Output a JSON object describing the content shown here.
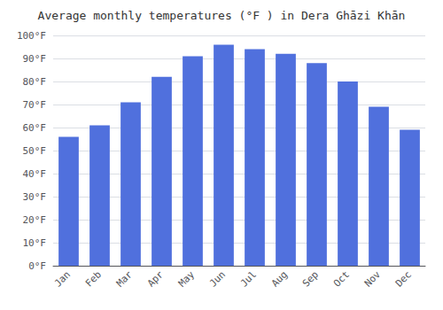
{
  "chart_data": {
    "type": "bar",
    "title": "Average monthly temperatures (°F ) in Dera Ghāzi Khān",
    "categories": [
      "Jan",
      "Feb",
      "Mar",
      "Apr",
      "May",
      "Jun",
      "Jul",
      "Aug",
      "Sep",
      "Oct",
      "Nov",
      "Dec"
    ],
    "values": [
      56,
      61,
      71,
      82,
      91,
      96,
      94,
      92,
      88,
      80,
      69,
      59
    ],
    "ylim": [
      0,
      100
    ],
    "yticks": [
      {
        "value": 0,
        "label": "0°F"
      },
      {
        "value": 10,
        "label": "10°F"
      },
      {
        "value": 20,
        "label": "20°F"
      },
      {
        "value": 30,
        "label": "30°F"
      },
      {
        "value": 40,
        "label": "40°F"
      },
      {
        "value": 50,
        "label": "50°F"
      },
      {
        "value": 60,
        "label": "60°F"
      },
      {
        "value": 70,
        "label": "70°F"
      },
      {
        "value": 80,
        "label": "80°F"
      },
      {
        "value": 90,
        "label": "90°F"
      },
      {
        "value": 100,
        "label": "100°F"
      }
    ],
    "grid": true
  }
}
